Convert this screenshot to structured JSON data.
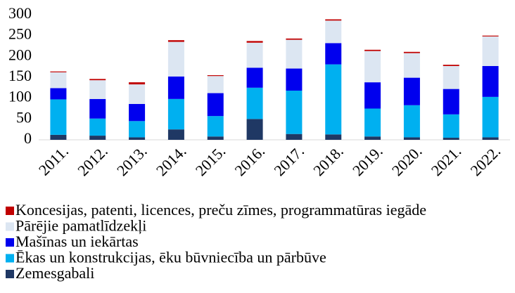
{
  "chart_data": {
    "type": "stacked-bar",
    "categories": [
      "2011.",
      "2012.",
      "2013.",
      "2014.",
      "2015.",
      "2016.",
      "2017.",
      "2018.",
      "2019.",
      "2020.",
      "2021.",
      "2022."
    ],
    "series": [
      {
        "name": "Zemesgabali",
        "color": "#1f3864",
        "values": [
          12,
          10,
          6,
          25,
          8,
          50,
          14,
          13,
          8,
          6,
          5,
          6
        ]
      },
      {
        "name": "Ēkas un konstrukcijas, ēku būvniecība un pārbūve",
        "color": "#00b0f0",
        "values": [
          85,
          41,
          39,
          73,
          49,
          75,
          104,
          168,
          67,
          77,
          56,
          97
        ]
      },
      {
        "name": "Mašīnas un iekārtas",
        "color": "#0000ee",
        "values": [
          27,
          47,
          41,
          54,
          55,
          48,
          53,
          51,
          63,
          66,
          61,
          74
        ]
      },
      {
        "name": "Pārējie pamatlīdzekļi",
        "color": "#dce6f2",
        "values": [
          38,
          45,
          47,
          83,
          41,
          60,
          69,
          54,
          75,
          59,
          55,
          71
        ]
      },
      {
        "name": "Koncesijas, patenti, licences, preču zīmes, programmatūras iegāde",
        "color": "#c00000",
        "values": [
          2,
          3,
          5,
          4,
          2,
          4,
          3,
          3,
          3,
          3,
          3,
          2
        ]
      }
    ],
    "ylim": [
      0,
      300
    ],
    "yticks": [
      0,
      50,
      100,
      150,
      200,
      250,
      300
    ],
    "grid": false
  }
}
